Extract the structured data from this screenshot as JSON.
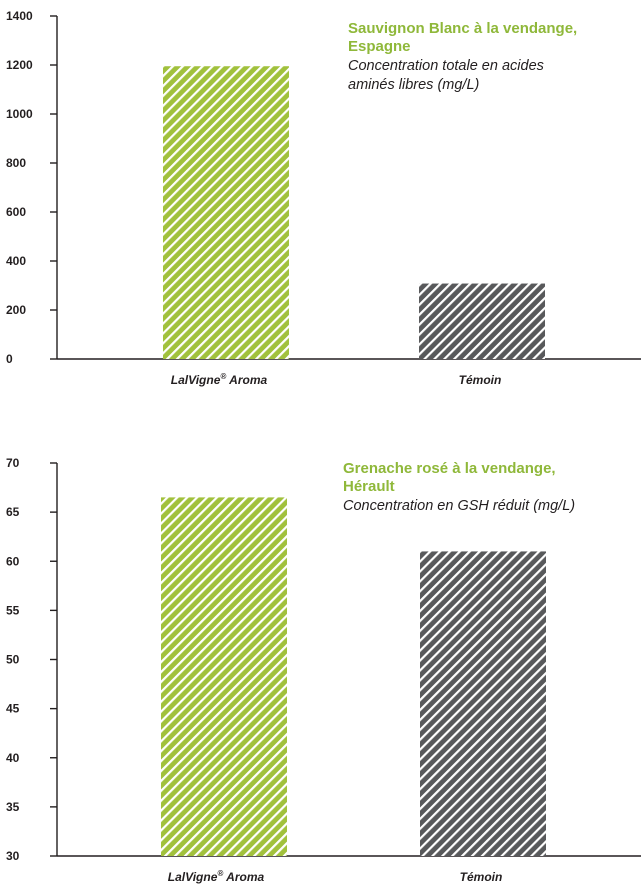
{
  "colors": {
    "green": "#a1c13c",
    "gray": "#58595b",
    "text": "#231f20",
    "title": "#8fb83a"
  },
  "chart_data": [
    {
      "type": "bar",
      "title_line1": "Sauvignon Blanc à la vendange,",
      "title_line2": "Espagne",
      "subtitle_line1": "Concentration totale en acides",
      "subtitle_line2": "aminés libres (mg/L)",
      "categories": [
        {
          "label": "LalVigne",
          "sup": "®",
          "label_after": " Aroma"
        },
        {
          "label": "Témoin",
          "sup": "",
          "label_after": ""
        }
      ],
      "values": [
        1195,
        308
      ],
      "ylim": [
        0,
        1400
      ],
      "yticks": [
        "0",
        "200",
        "400",
        "600",
        "800",
        "1000",
        "1200",
        "1400"
      ],
      "bar_colors": [
        "#a1c13c",
        "#58595b"
      ],
      "grid": false
    },
    {
      "type": "bar",
      "title_line1": "Grenache rosé à la vendange,",
      "title_line2": "Hérault",
      "subtitle_line1": "Concentration en GSH réduit (mg/L)",
      "subtitle_line2": "",
      "categories": [
        {
          "label": "LalVigne",
          "sup": "®",
          "label_after": " Aroma"
        },
        {
          "label": "Témoin",
          "sup": "",
          "label_after": ""
        }
      ],
      "values": [
        66.5,
        61
      ],
      "ylim": [
        30,
        70
      ],
      "yticks": [
        "30",
        "35",
        "40",
        "45",
        "50",
        "55",
        "60",
        "65",
        "70"
      ],
      "bar_colors": [
        "#a1c13c",
        "#58595b"
      ],
      "grid": false
    }
  ]
}
